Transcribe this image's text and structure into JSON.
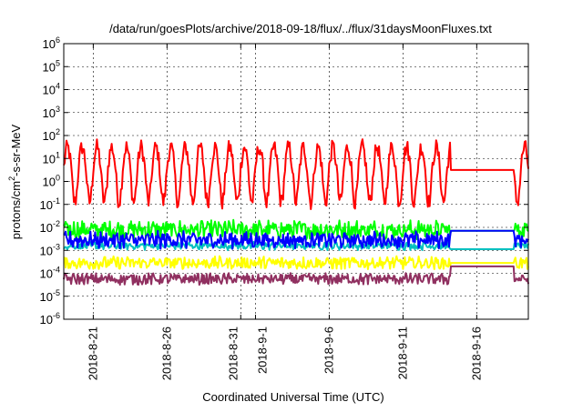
{
  "chart_data": {
    "type": "line",
    "title": "/data/run/goesPlots/archive/2018-09-18/flux/../flux/31daysMoonFluxes.txt",
    "xlabel": "Coordinated Universal Time (UTC)",
    "ylabel_main": "protons/cm",
    "ylabel_sup": "2",
    "ylabel_tail": "-s-sr-MeV",
    "y_scale": "log",
    "y_range_exp": [
      -6,
      6
    ],
    "y_tick_exponents": [
      -6,
      -5,
      -4,
      -3,
      -2,
      -1,
      0,
      1,
      2,
      3,
      4,
      5,
      6
    ],
    "y_tick_base": "10",
    "x_range_days": [
      "2018-08-19",
      "2018-09-19"
    ],
    "x_tick_labels": [
      "2018-8-21",
      "2018-8-26",
      "2018-8-31",
      "2018-9-1",
      "2018-9-6",
      "2018-9-11",
      "2018-9-16"
    ],
    "x_tick_dates": [
      "2018-08-21",
      "2018-08-26",
      "2018-08-31",
      "2018-09-01",
      "2018-09-06",
      "2018-09-11",
      "2018-09-16"
    ],
    "grid": true,
    "data_gap": [
      "2018-09-14",
      "2018-09-18"
    ],
    "series": [
      {
        "color": "#ff0000",
        "log_mean": 0.6,
        "log_amp": 0.9,
        "log_noise": 0.35,
        "period_days": 1.0,
        "gap_level_log": 0.5
      },
      {
        "color": "#00ff00",
        "log_mean": -2.1,
        "log_amp": 0.1,
        "log_noise": 0.35,
        "period_days": 0.3,
        "gap_level_log": -2.15
      },
      {
        "color": "#00c0c0",
        "log_mean": -2.8,
        "log_amp": 0.05,
        "log_noise": 0.15,
        "period_days": 0.4,
        "gap_level_log": -2.95
      },
      {
        "color": "#0000ff",
        "log_mean": -2.55,
        "log_amp": 0.1,
        "log_noise": 0.3,
        "period_days": 0.35,
        "gap_level_log": -2.15
      },
      {
        "color": "#ffff00",
        "log_mean": -3.55,
        "log_amp": 0.05,
        "log_noise": 0.25,
        "period_days": 0.3,
        "gap_level_log": -3.55
      },
      {
        "color": "#903060",
        "log_mean": -4.25,
        "log_amp": 0.05,
        "log_noise": 0.22,
        "period_days": 0.3,
        "gap_level_log": -3.7
      }
    ]
  }
}
